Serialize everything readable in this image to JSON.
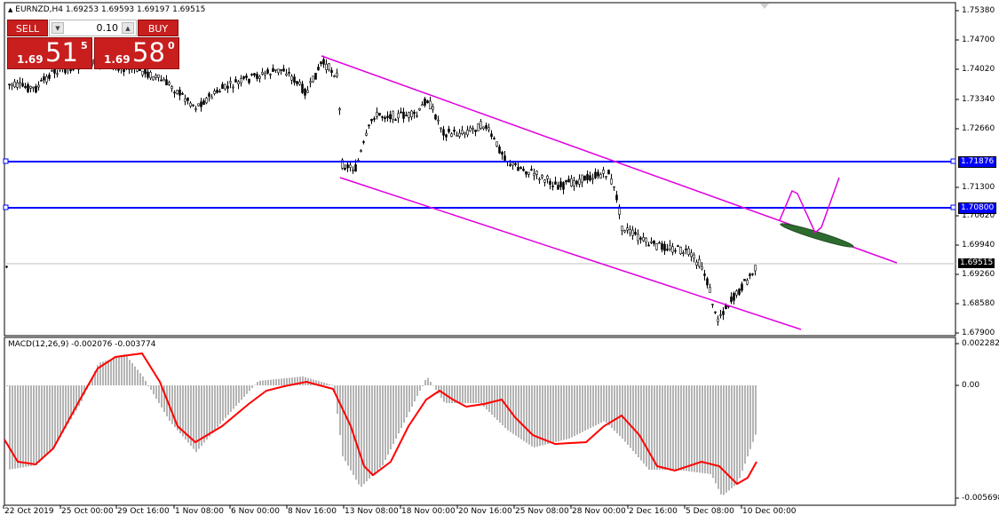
{
  "title": {
    "symbol": "EURNZD,H4",
    "ohlc": "1.69253 1.69593 1.69197 1.69515",
    "indicator": "MACD(12,26,9) -0.002076 -0.003774"
  },
  "trade_panel": {
    "sell_label": "SELL",
    "buy_label": "BUY",
    "lot": "0.10",
    "sell_small": "1.69",
    "sell_big": "51",
    "sell_sup": "5",
    "buy_small": "1.69",
    "buy_big": "58",
    "buy_sup": "0"
  },
  "price_axis": [
    "1.75380",
    "1.74700",
    "1.74020",
    "1.73340",
    "1.72660",
    "1.71300",
    "1.70620",
    "1.69940",
    "1.69260",
    "1.68580",
    "1.67900"
  ],
  "macd_axis": [
    "0.002282",
    "0.00",
    "-0.005698"
  ],
  "time_axis": [
    "22 Oct 2019",
    "25 Oct 00:00",
    "29 Oct 16:00",
    "1 Nov 08:00",
    "6 Nov 00:00",
    "8 Nov 16:00",
    "13 Nov 08:00",
    "18 Nov 00:00",
    "20 Nov 16:00",
    "25 Nov 08:00",
    "28 Nov 00:00",
    "2 Dec 16:00",
    "5 Dec 08:00",
    "10 Dec 00:00"
  ],
  "price_tags": {
    "hline_upper": "1.71876",
    "hline_lower": "1.70800",
    "current": "1.69515"
  },
  "colors": {
    "background": "#ffffff",
    "grid_frame": "#000000",
    "hline": "#0000ff",
    "channel": "#e000e0",
    "macd_signal": "#ff0000",
    "macd_hist": "#b4b4b4",
    "trade_button": "#c81e1e",
    "ellipse": "#2e6b2e"
  },
  "icons": {
    "triangle": "triangle-up-icon",
    "scroll": "scroll-marker-icon"
  }
}
